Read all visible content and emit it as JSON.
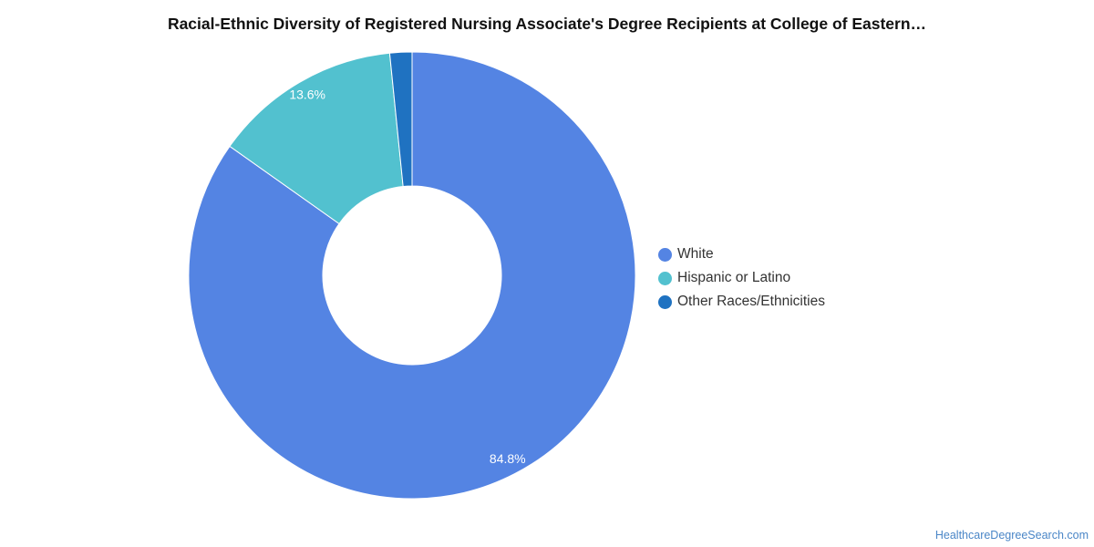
{
  "title": "Racial-Ethnic Diversity of Registered Nursing Associate's Degree Recipients at College of Eastern…",
  "source_link": "HealthcareDegreeSearch.com",
  "chart_data": {
    "type": "pie",
    "donut": true,
    "title": "Racial-Ethnic Diversity of Registered Nursing Associate's Degree Recipients at College of Eastern…",
    "legend_position": "right",
    "slices": [
      {
        "label": "White",
        "value": 84.8,
        "value_label": "84.8%",
        "color": "#5484e3"
      },
      {
        "label": "Hispanic or Latino",
        "value": 13.6,
        "value_label": "13.6%",
        "color": "#52c1cf"
      },
      {
        "label": "Other Races/Ethnicities",
        "value": 1.6,
        "value_label": "",
        "color": "#1f72c1"
      }
    ]
  }
}
